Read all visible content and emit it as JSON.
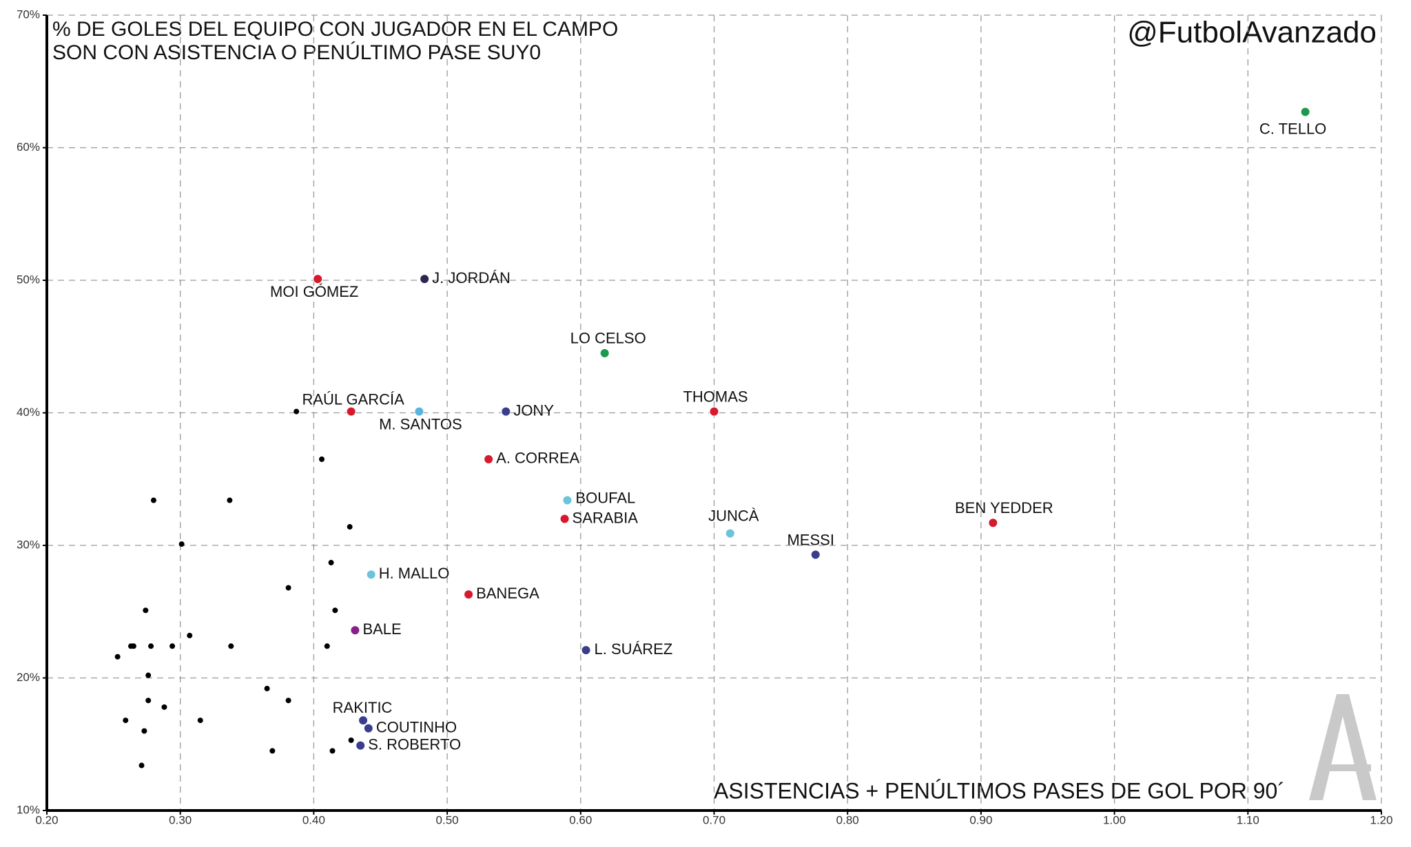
{
  "chart_data": {
    "type": "scatter",
    "title": [
      "% DE GOLES DEL EQUIPO CON JUGADOR EN EL CAMPO",
      "SON CON ASISTENCIA O PENÚLTIMO PASE SUY0"
    ],
    "watermark": "@FutbolAvanzado",
    "x_label": "ASISTENCIAS + PENÚLTIMOS PASES DE GOL POR 90´",
    "xlim": [
      0.2,
      1.2
    ],
    "ylim": [
      10,
      70
    ],
    "xticks": [
      {
        "value": 0.2,
        "label": "0.20"
      },
      {
        "value": 0.3,
        "label": "0.30"
      },
      {
        "value": 0.4,
        "label": "0.40"
      },
      {
        "value": 0.5,
        "label": "0.50"
      },
      {
        "value": 0.6,
        "label": "0.60"
      },
      {
        "value": 0.7,
        "label": "0.70"
      },
      {
        "value": 0.8,
        "label": "0.80"
      },
      {
        "value": 0.9,
        "label": "0.90"
      },
      {
        "value": 1.0,
        "label": "1.00"
      },
      {
        "value": 1.1,
        "label": "1.10"
      },
      {
        "value": 1.2,
        "label": "1.20"
      }
    ],
    "yticks": [
      {
        "value": 10,
        "label": "10%"
      },
      {
        "value": 20,
        "label": "20%"
      },
      {
        "value": 30,
        "label": "30%"
      },
      {
        "value": 40,
        "label": "40%"
      },
      {
        "value": 50,
        "label": "50%"
      },
      {
        "value": 60,
        "label": "60%"
      },
      {
        "value": 70,
        "label": "70%"
      }
    ],
    "grid": true,
    "points": [
      {
        "label": "C. TELLO",
        "x": 1.143,
        "y": 62.7,
        "color": "#1a9a4a"
      },
      {
        "label": "MOI GÓMEZ",
        "x": 0.403,
        "y": 50.1,
        "color": "#d7192d"
      },
      {
        "label": "J. JORDÁN",
        "x": 0.483,
        "y": 50.1,
        "color": "#2b2750"
      },
      {
        "label": "LO CELSO",
        "x": 0.618,
        "y": 44.5,
        "color": "#1a9a4a"
      },
      {
        "label": "RAÚL GARCÍA",
        "x": 0.428,
        "y": 40.1,
        "color": "#d7192d"
      },
      {
        "label": "M. SANTOS",
        "x": 0.479,
        "y": 40.1,
        "color": "#5ab4e0"
      },
      {
        "label": "JONY",
        "x": 0.544,
        "y": 40.1,
        "color": "#3a3d8c"
      },
      {
        "label": "THOMAS",
        "x": 0.7,
        "y": 40.1,
        "color": "#d7192d"
      },
      {
        "label": "A. CORREA",
        "x": 0.531,
        "y": 36.5,
        "color": "#d7192d"
      },
      {
        "label": "BOUFAL",
        "x": 0.59,
        "y": 33.4,
        "color": "#6cc3dc"
      },
      {
        "label": "SARABIA",
        "x": 0.588,
        "y": 32.0,
        "color": "#d7192d"
      },
      {
        "label": "JUNCÀ",
        "x": 0.712,
        "y": 30.9,
        "color": "#6cc3dc"
      },
      {
        "label": "BEN YEDDER",
        "x": 0.909,
        "y": 31.7,
        "color": "#d7192d"
      },
      {
        "label": "MESSI",
        "x": 0.776,
        "y": 29.3,
        "color": "#3a3d8c"
      },
      {
        "label": "H. MALLO",
        "x": 0.443,
        "y": 27.8,
        "color": "#6cc3dc"
      },
      {
        "label": "BANEGA",
        "x": 0.516,
        "y": 26.3,
        "color": "#d7192d"
      },
      {
        "label": "BALE",
        "x": 0.431,
        "y": 23.6,
        "color": "#8a1f8a"
      },
      {
        "label": "L. SUÁREZ",
        "x": 0.604,
        "y": 22.1,
        "color": "#3a3d8c"
      },
      {
        "label": "RAKITIC",
        "x": 0.437,
        "y": 16.8,
        "color": "#3a3d8c"
      },
      {
        "label": "COUTINHO",
        "x": 0.441,
        "y": 16.2,
        "color": "#3a3d8c"
      },
      {
        "label": "S. ROBERTO",
        "x": 0.435,
        "y": 14.9,
        "color": "#3a3d8c"
      },
      {
        "x": 0.387,
        "y": 40.1,
        "color": "#000000"
      },
      {
        "x": 0.406,
        "y": 36.5,
        "color": "#000000"
      },
      {
        "x": 0.28,
        "y": 33.4,
        "color": "#000000"
      },
      {
        "x": 0.337,
        "y": 33.4,
        "color": "#000000"
      },
      {
        "x": 0.427,
        "y": 31.4,
        "color": "#000000"
      },
      {
        "x": 0.301,
        "y": 30.1,
        "color": "#000000"
      },
      {
        "x": 0.413,
        "y": 28.7,
        "color": "#000000"
      },
      {
        "x": 0.381,
        "y": 26.8,
        "color": "#000000"
      },
      {
        "x": 0.416,
        "y": 25.1,
        "color": "#000000"
      },
      {
        "x": 0.274,
        "y": 25.1,
        "color": "#000000"
      },
      {
        "x": 0.307,
        "y": 23.2,
        "color": "#000000"
      },
      {
        "x": 0.263,
        "y": 22.4,
        "color": "#000000"
      },
      {
        "x": 0.265,
        "y": 22.4,
        "color": "#000000"
      },
      {
        "x": 0.278,
        "y": 22.4,
        "color": "#000000"
      },
      {
        "x": 0.294,
        "y": 22.4,
        "color": "#000000"
      },
      {
        "x": 0.338,
        "y": 22.4,
        "color": "#000000"
      },
      {
        "x": 0.41,
        "y": 22.4,
        "color": "#000000"
      },
      {
        "x": 0.253,
        "y": 21.6,
        "color": "#000000"
      },
      {
        "x": 0.276,
        "y": 20.2,
        "color": "#000000"
      },
      {
        "x": 0.365,
        "y": 19.2,
        "color": "#000000"
      },
      {
        "x": 0.276,
        "y": 18.3,
        "color": "#000000"
      },
      {
        "x": 0.381,
        "y": 18.3,
        "color": "#000000"
      },
      {
        "x": 0.288,
        "y": 17.8,
        "color": "#000000"
      },
      {
        "x": 0.259,
        "y": 16.8,
        "color": "#000000"
      },
      {
        "x": 0.315,
        "y": 16.8,
        "color": "#000000"
      },
      {
        "x": 0.273,
        "y": 16.0,
        "color": "#000000"
      },
      {
        "x": 0.428,
        "y": 15.3,
        "color": "#000000"
      },
      {
        "x": 0.369,
        "y": 14.5,
        "color": "#000000"
      },
      {
        "x": 0.414,
        "y": 14.5,
        "color": "#000000"
      },
      {
        "x": 0.271,
        "y": 13.4,
        "color": "#000000"
      }
    ]
  }
}
